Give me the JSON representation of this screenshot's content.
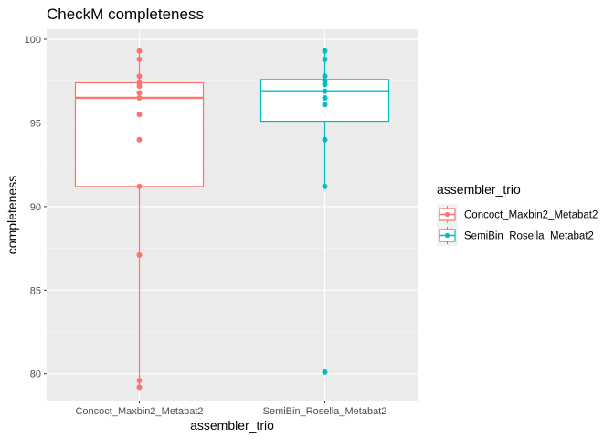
{
  "chart_data": {
    "type": "boxplot",
    "title": "CheckM completeness",
    "xlabel": "assembler_trio",
    "ylabel": "completeness",
    "ylim": [
      78.4,
      100.6
    ],
    "yticks": [
      80,
      85,
      90,
      95,
      100
    ],
    "grid": true,
    "legend_position": "right",
    "legend_title": "assembler_trio",
    "categories": [
      "Concoct_Maxbin2_Metabat2",
      "SemiBin_Rosella_Metabat2"
    ],
    "series": [
      {
        "name": "Concoct_Maxbin2_Metabat2",
        "color": "#F8766D",
        "box": {
          "whisker_low": 79.2,
          "q1": 91.2,
          "median": 96.5,
          "q3": 97.4,
          "whisker_high": 99.3
        },
        "points": [
          99.3,
          98.8,
          97.8,
          97.4,
          97.2,
          96.8,
          96.5,
          95.5,
          94.0,
          91.2,
          87.1,
          79.6,
          79.2
        ]
      },
      {
        "name": "SemiBin_Rosella_Metabat2",
        "color": "#00BFC4",
        "box": {
          "whisker_low": 91.2,
          "q1": 95.1,
          "median": 96.9,
          "q3": 97.6,
          "whisker_high": 99.3
        },
        "points": [
          99.3,
          98.8,
          97.8,
          97.5,
          97.3,
          96.9,
          96.5,
          96.1,
          94.0,
          91.2,
          80.1
        ]
      }
    ]
  }
}
